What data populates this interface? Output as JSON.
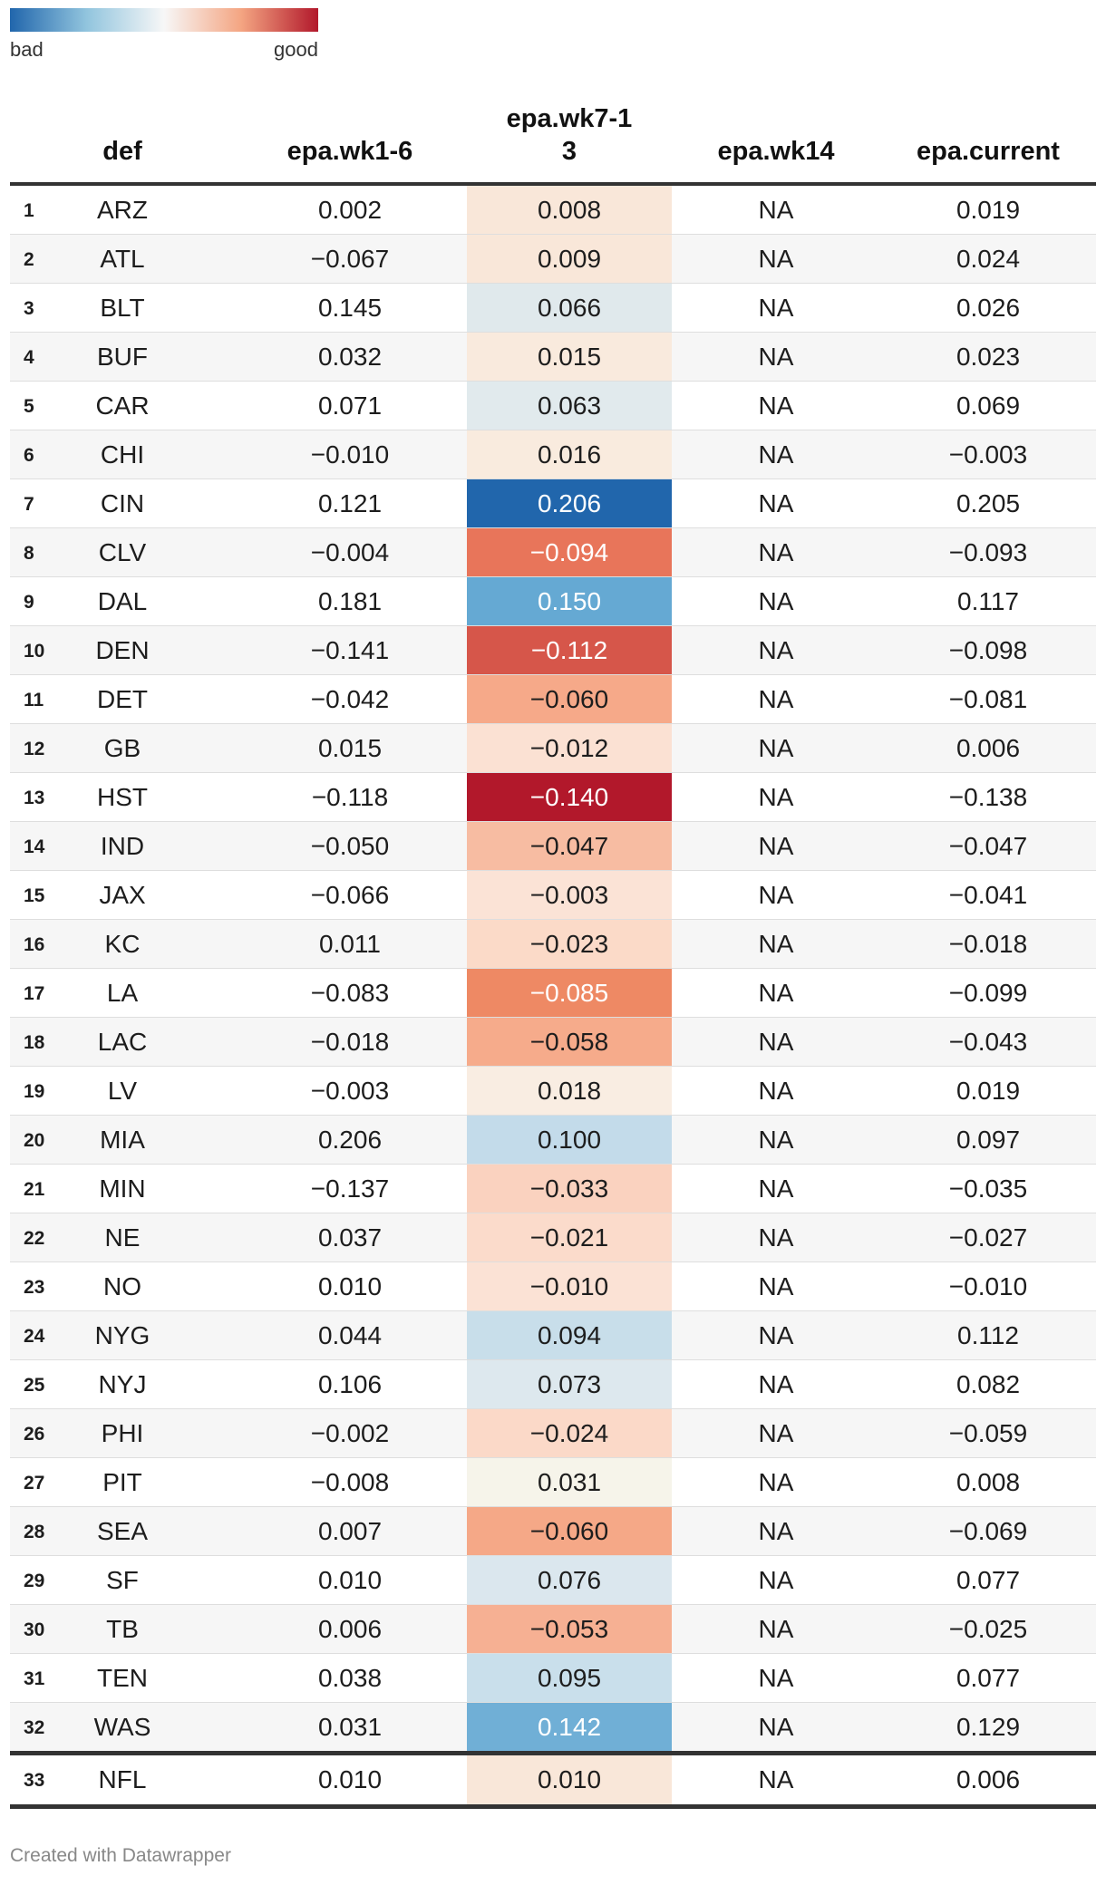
{
  "legend": {
    "low_label": "bad",
    "high_label": "good",
    "colors": [
      "#2166ac",
      "#92c5de",
      "#f7f7f7",
      "#f4a582",
      "#b2182b"
    ]
  },
  "table": {
    "columns": [
      "def",
      "epa.wk1-6",
      "epa.wk7-13",
      "epa.wk14",
      "epa.current"
    ],
    "heatmap_column": "epa.wk7-13",
    "rows": [
      {
        "rank": "1",
        "def": "ARZ",
        "wk1_6": "0.002",
        "wk7_13": "0.008",
        "wk14": "NA",
        "current": "0.019",
        "color": "#f9e7d9",
        "text": "#1d1d1d"
      },
      {
        "rank": "2",
        "def": "ATL",
        "wk1_6": "−0.067",
        "wk7_13": "0.009",
        "wk14": "NA",
        "current": "0.024",
        "color": "#f9e7d9",
        "text": "#1d1d1d"
      },
      {
        "rank": "3",
        "def": "BLT",
        "wk1_6": "0.145",
        "wk7_13": "0.066",
        "wk14": "NA",
        "current": "0.026",
        "color": "#e0e9ec",
        "text": "#1d1d1d"
      },
      {
        "rank": "4",
        "def": "BUF",
        "wk1_6": "0.032",
        "wk7_13": "0.015",
        "wk14": "NA",
        "current": "0.023",
        "color": "#f9eadd",
        "text": "#1d1d1d"
      },
      {
        "rank": "5",
        "def": "CAR",
        "wk1_6": "0.071",
        "wk7_13": "0.063",
        "wk14": "NA",
        "current": "0.069",
        "color": "#e1eaed",
        "text": "#1d1d1d"
      },
      {
        "rank": "6",
        "def": "CHI",
        "wk1_6": "−0.010",
        "wk7_13": "0.016",
        "wk14": "NA",
        "current": "−0.003",
        "color": "#f9ebde",
        "text": "#1d1d1d"
      },
      {
        "rank": "7",
        "def": "CIN",
        "wk1_6": "0.121",
        "wk7_13": "0.206",
        "wk14": "NA",
        "current": "0.205",
        "color": "#2166ac",
        "text": "#ffffff"
      },
      {
        "rank": "8",
        "def": "CLV",
        "wk1_6": "−0.004",
        "wk7_13": "−0.094",
        "wk14": "NA",
        "current": "−0.093",
        "color": "#e8755a",
        "text": "#ffffff"
      },
      {
        "rank": "9",
        "def": "DAL",
        "wk1_6": "0.181",
        "wk7_13": "0.150",
        "wk14": "NA",
        "current": "0.117",
        "color": "#65a9d3",
        "text": "#ffffff"
      },
      {
        "rank": "10",
        "def": "DEN",
        "wk1_6": "−0.141",
        "wk7_13": "−0.112",
        "wk14": "NA",
        "current": "−0.098",
        "color": "#d6564a",
        "text": "#ffffff"
      },
      {
        "rank": "11",
        "def": "DET",
        "wk1_6": "−0.042",
        "wk7_13": "−0.060",
        "wk14": "NA",
        "current": "−0.081",
        "color": "#f6a989",
        "text": "#1d1d1d"
      },
      {
        "rank": "12",
        "def": "GB",
        "wk1_6": "0.015",
        "wk7_13": "−0.012",
        "wk14": "NA",
        "current": "0.006",
        "color": "#fbe1d3",
        "text": "#1d1d1d"
      },
      {
        "rank": "13",
        "def": "HST",
        "wk1_6": "−0.118",
        "wk7_13": "−0.140",
        "wk14": "NA",
        "current": "−0.138",
        "color": "#b2182b",
        "text": "#ffffff"
      },
      {
        "rank": "14",
        "def": "IND",
        "wk1_6": "−0.050",
        "wk7_13": "−0.047",
        "wk14": "NA",
        "current": "−0.047",
        "color": "#f7bca2",
        "text": "#1d1d1d"
      },
      {
        "rank": "15",
        "def": "JAX",
        "wk1_6": "−0.066",
        "wk7_13": "−0.003",
        "wk14": "NA",
        "current": "−0.041",
        "color": "#fbe3d6",
        "text": "#1d1d1d"
      },
      {
        "rank": "16",
        "def": "KC",
        "wk1_6": "0.011",
        "wk7_13": "−0.023",
        "wk14": "NA",
        "current": "−0.018",
        "color": "#fbdac8",
        "text": "#1d1d1d"
      },
      {
        "rank": "17",
        "def": "LA",
        "wk1_6": "−0.083",
        "wk7_13": "−0.085",
        "wk14": "NA",
        "current": "−0.099",
        "color": "#ee8964",
        "text": "#ffffff"
      },
      {
        "rank": "18",
        "def": "LAC",
        "wk1_6": "−0.018",
        "wk7_13": "−0.058",
        "wk14": "NA",
        "current": "−0.043",
        "color": "#f6ab8b",
        "text": "#1d1d1d"
      },
      {
        "rank": "19",
        "def": "LV",
        "wk1_6": "−0.003",
        "wk7_13": "0.018",
        "wk14": "NA",
        "current": "0.019",
        "color": "#f9ede2",
        "text": "#1d1d1d"
      },
      {
        "rank": "20",
        "def": "MIA",
        "wk1_6": "0.206",
        "wk7_13": "0.100",
        "wk14": "NA",
        "current": "0.097",
        "color": "#c3dbea",
        "text": "#1d1d1d"
      },
      {
        "rank": "21",
        "def": "MIN",
        "wk1_6": "−0.137",
        "wk7_13": "−0.033",
        "wk14": "NA",
        "current": "−0.035",
        "color": "#fad2bf",
        "text": "#1d1d1d"
      },
      {
        "rank": "22",
        "def": "NE",
        "wk1_6": "0.037",
        "wk7_13": "−0.021",
        "wk14": "NA",
        "current": "−0.027",
        "color": "#fbdbcb",
        "text": "#1d1d1d"
      },
      {
        "rank": "23",
        "def": "NO",
        "wk1_6": "0.010",
        "wk7_13": "−0.010",
        "wk14": "NA",
        "current": "−0.010",
        "color": "#fbe2d5",
        "text": "#1d1d1d"
      },
      {
        "rank": "24",
        "def": "NYG",
        "wk1_6": "0.044",
        "wk7_13": "0.094",
        "wk14": "NA",
        "current": "0.112",
        "color": "#c8deea",
        "text": "#1d1d1d"
      },
      {
        "rank": "25",
        "def": "NYJ",
        "wk1_6": "0.106",
        "wk7_13": "0.073",
        "wk14": "NA",
        "current": "0.082",
        "color": "#dde8ee",
        "text": "#1d1d1d"
      },
      {
        "rank": "26",
        "def": "PHI",
        "wk1_6": "−0.002",
        "wk7_13": "−0.024",
        "wk14": "NA",
        "current": "−0.059",
        "color": "#fbd9c8",
        "text": "#1d1d1d"
      },
      {
        "rank": "27",
        "def": "PIT",
        "wk1_6": "−0.008",
        "wk7_13": "0.031",
        "wk14": "NA",
        "current": "0.008",
        "color": "#f6f4ea",
        "text": "#1d1d1d"
      },
      {
        "rank": "28",
        "def": "SEA",
        "wk1_6": "0.007",
        "wk7_13": "−0.060",
        "wk14": "NA",
        "current": "−0.069",
        "color": "#f5a887",
        "text": "#1d1d1d"
      },
      {
        "rank": "29",
        "def": "SF",
        "wk1_6": "0.010",
        "wk7_13": "0.076",
        "wk14": "NA",
        "current": "0.077",
        "color": "#dbe7ee",
        "text": "#1d1d1d"
      },
      {
        "rank": "30",
        "def": "TB",
        "wk1_6": "0.006",
        "wk7_13": "−0.053",
        "wk14": "NA",
        "current": "−0.025",
        "color": "#f6b093",
        "text": "#1d1d1d"
      },
      {
        "rank": "31",
        "def": "TEN",
        "wk1_6": "0.038",
        "wk7_13": "0.095",
        "wk14": "NA",
        "current": "0.077",
        "color": "#c9dfeb",
        "text": "#1d1d1d"
      },
      {
        "rank": "32",
        "def": "WAS",
        "wk1_6": "0.031",
        "wk7_13": "0.142",
        "wk14": "NA",
        "current": "0.129",
        "color": "#70afd6",
        "text": "#ffffff"
      }
    ],
    "summary_row": {
      "rank": "33",
      "def": "NFL",
      "wk1_6": "0.010",
      "wk7_13": "0.010",
      "wk14": "NA",
      "current": "0.006",
      "color": "#f9e7d9",
      "text": "#1d1d1d"
    }
  },
  "chart_data": {
    "type": "table",
    "columns": [
      "def",
      "epa.wk1-6",
      "epa.wk7-13",
      "epa.wk14",
      "epa.current"
    ],
    "heatmap_column": "epa.wk7-13",
    "color_scale": {
      "low": "bad",
      "high": "good"
    },
    "rows": [
      [
        "ARZ",
        0.002,
        0.008,
        "NA",
        0.019
      ],
      [
        "ATL",
        -0.067,
        0.009,
        "NA",
        0.024
      ],
      [
        "BLT",
        0.145,
        0.066,
        "NA",
        0.026
      ],
      [
        "BUF",
        0.032,
        0.015,
        "NA",
        0.023
      ],
      [
        "CAR",
        0.071,
        0.063,
        "NA",
        0.069
      ],
      [
        "CHI",
        -0.01,
        0.016,
        "NA",
        -0.003
      ],
      [
        "CIN",
        0.121,
        0.206,
        "NA",
        0.205
      ],
      [
        "CLV",
        -0.004,
        -0.094,
        "NA",
        -0.093
      ],
      [
        "DAL",
        0.181,
        0.15,
        "NA",
        0.117
      ],
      [
        "DEN",
        -0.141,
        -0.112,
        "NA",
        -0.098
      ],
      [
        "DET",
        -0.042,
        -0.06,
        "NA",
        -0.081
      ],
      [
        "GB",
        0.015,
        -0.012,
        "NA",
        0.006
      ],
      [
        "HST",
        -0.118,
        -0.14,
        "NA",
        -0.138
      ],
      [
        "IND",
        -0.05,
        -0.047,
        "NA",
        -0.047
      ],
      [
        "JAX",
        -0.066,
        -0.003,
        "NA",
        -0.041
      ],
      [
        "KC",
        0.011,
        -0.023,
        "NA",
        -0.018
      ],
      [
        "LA",
        -0.083,
        -0.085,
        "NA",
        -0.099
      ],
      [
        "LAC",
        -0.018,
        -0.058,
        "NA",
        -0.043
      ],
      [
        "LV",
        -0.003,
        0.018,
        "NA",
        0.019
      ],
      [
        "MIA",
        0.206,
        0.1,
        "NA",
        0.097
      ],
      [
        "MIN",
        -0.137,
        -0.033,
        "NA",
        -0.035
      ],
      [
        "NE",
        0.037,
        -0.021,
        "NA",
        -0.027
      ],
      [
        "NO",
        0.01,
        -0.01,
        "NA",
        -0.01
      ],
      [
        "NYG",
        0.044,
        0.094,
        "NA",
        0.112
      ],
      [
        "NYJ",
        0.106,
        0.073,
        "NA",
        0.082
      ],
      [
        "PHI",
        -0.002,
        -0.024,
        "NA",
        -0.059
      ],
      [
        "PIT",
        -0.008,
        0.031,
        "NA",
        0.008
      ],
      [
        "SEA",
        0.007,
        -0.06,
        "NA",
        -0.069
      ],
      [
        "SF",
        0.01,
        0.076,
        "NA",
        0.077
      ],
      [
        "TB",
        0.006,
        -0.053,
        "NA",
        -0.025
      ],
      [
        "TEN",
        0.038,
        0.095,
        "NA",
        0.077
      ],
      [
        "WAS",
        0.031,
        0.142,
        "NA",
        0.129
      ],
      [
        "NFL",
        0.01,
        0.01,
        "NA",
        0.006
      ]
    ]
  },
  "footer": {
    "credit": "Created with Datawrapper"
  }
}
